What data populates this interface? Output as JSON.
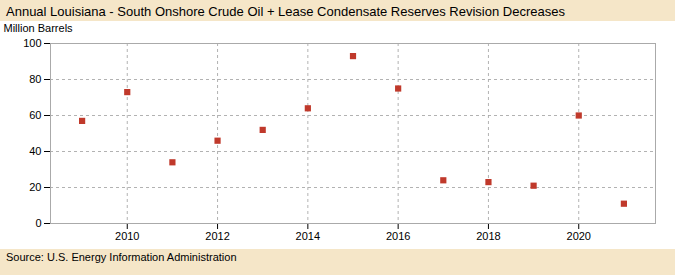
{
  "chart_data": {
    "type": "scatter",
    "title": "Annual Louisiana - South Onshore Crude Oil + Lease Condensate Reserves Revision Decreases",
    "ylabel": "Million Barrels",
    "annotations": [
      "Source: U.S. Energy Information Administration"
    ],
    "x": [
      2009,
      2010,
      2011,
      2012,
      2013,
      2014,
      2015,
      2016,
      2017,
      2018,
      2019,
      2020,
      2021
    ],
    "values": [
      57,
      73,
      34,
      46,
      52,
      64,
      93,
      75,
      24,
      23,
      21,
      60,
      11
    ],
    "color": "#c0392b",
    "marker": "square",
    "xlim": [
      2008.3,
      2021.7
    ],
    "ylim": [
      0,
      100
    ],
    "xticks": [
      2010,
      2012,
      2014,
      2016,
      2018,
      2020
    ],
    "yticks": [
      0,
      20,
      40,
      60,
      80,
      100
    ],
    "grid": true
  }
}
